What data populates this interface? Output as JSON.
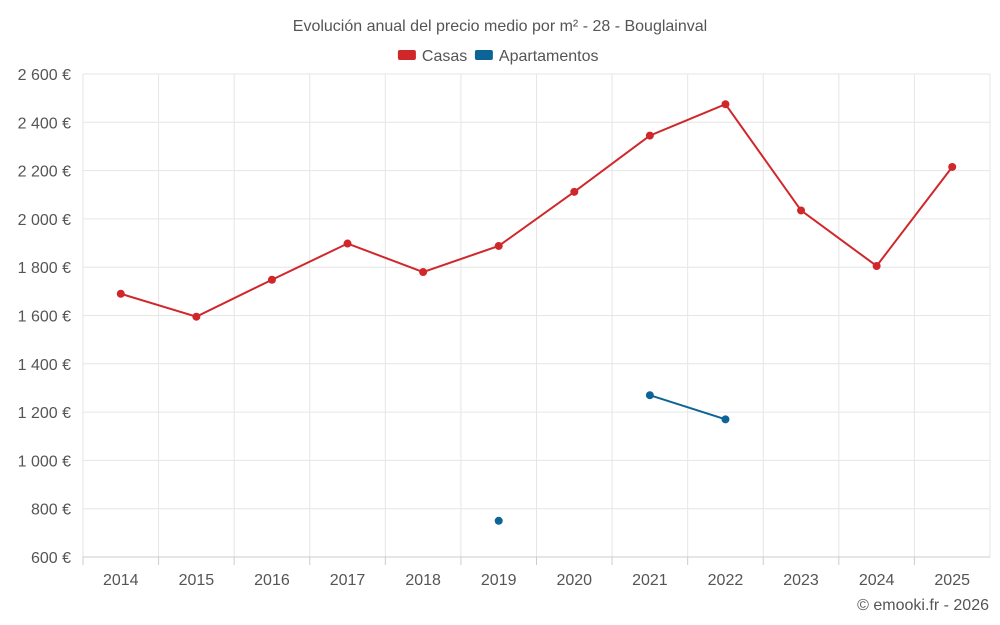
{
  "chart_data": {
    "type": "line",
    "title": "Evolución anual del precio medio por m² - 28 - Bouglainval",
    "categories": [
      "2014",
      "2015",
      "2016",
      "2017",
      "2018",
      "2019",
      "2020",
      "2021",
      "2022",
      "2023",
      "2024",
      "2025"
    ],
    "ylim": [
      600,
      2600
    ],
    "yticks": [
      600,
      800,
      1000,
      1200,
      1400,
      1600,
      1800,
      2000,
      2200,
      2400,
      2600
    ],
    "ytick_labels": [
      "600 €",
      "800 €",
      "1 000 €",
      "1 200 €",
      "1 400 €",
      "1 600 €",
      "1 800 €",
      "2 000 €",
      "2 200 €",
      "2 400 €",
      "2 600 €"
    ],
    "grid": true,
    "legend_position": "top-center",
    "series": [
      {
        "name": "Casas",
        "color": "#d0272b",
        "values": [
          1690,
          1595,
          1748,
          1898,
          1780,
          1888,
          2112,
          2345,
          2475,
          2035,
          1805,
          2215
        ]
      },
      {
        "name": "Apartamentos",
        "color": "#0d6497",
        "values": [
          null,
          null,
          null,
          null,
          null,
          750,
          null,
          1270,
          1170,
          null,
          null,
          null
        ]
      }
    ]
  },
  "credit": "© emooki.fr - 2026"
}
